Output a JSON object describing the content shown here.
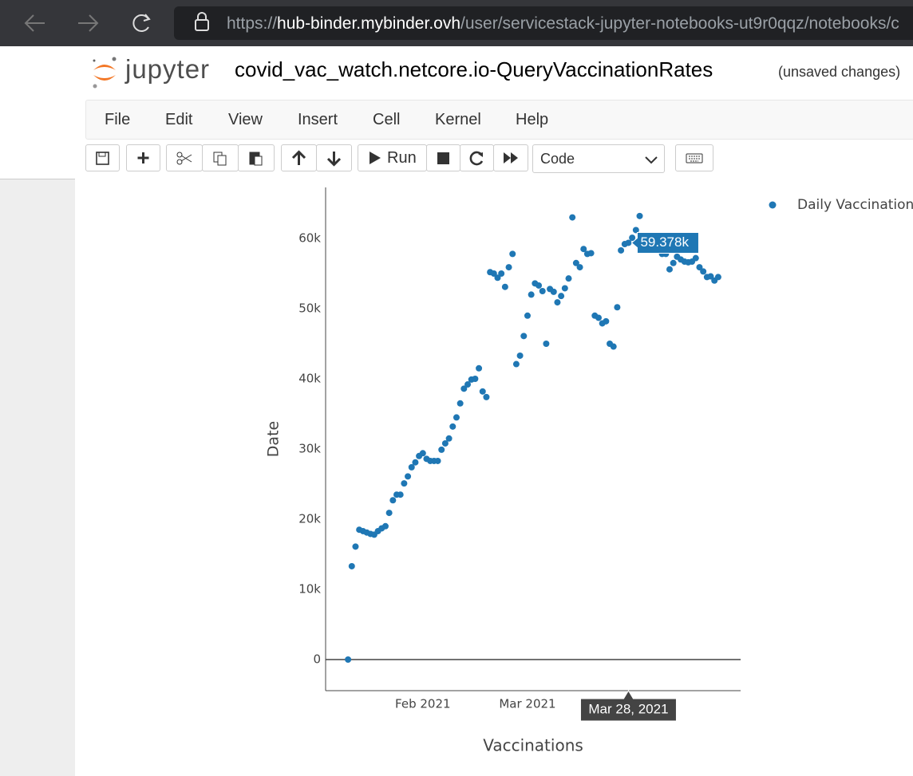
{
  "browser": {
    "url_scheme": "https://",
    "url_host": "hub-binder.mybinder.ovh",
    "url_path": "/user/servicestack-jupyter-notebooks-ut9r0qqz/notebooks/c"
  },
  "header": {
    "logo_text": "jupyter",
    "notebook_name": "covid_vac_watch.netcore.io-QueryVaccinationRates",
    "status": "(unsaved changes)"
  },
  "menu": [
    "File",
    "Edit",
    "View",
    "Insert",
    "Cell",
    "Kernel",
    "Help"
  ],
  "toolbar": {
    "run_label": "Run",
    "cell_type": "Code"
  },
  "chart_data": {
    "type": "scatter",
    "xlabel": "Vaccinations",
    "ylabel": "Date",
    "xlim": [
      "2021-01-06",
      "2021-04-27"
    ],
    "xticks": [
      {
        "value": "2021-02-01",
        "label": "Feb 2021"
      },
      {
        "value": "2021-03-01",
        "label": "Mar 2021"
      }
    ],
    "ylim": [
      -4432,
      67273
    ],
    "yticks": [
      0,
      {
        "value": 10000,
        "label": "10k"
      },
      {
        "value": 20000,
        "label": "20k"
      },
      {
        "value": 30000,
        "label": "30k"
      },
      {
        "value": 40000,
        "label": "40k"
      },
      {
        "value": 50000,
        "label": "50k"
      },
      {
        "value": 60000,
        "label": "60k"
      }
    ],
    "zeroline": true,
    "grid": false,
    "legend": "top-right",
    "x": [
      "2021-01-12",
      "2021-01-13",
      "2021-01-14",
      "2021-01-15",
      "2021-01-16",
      "2021-01-17",
      "2021-01-18",
      "2021-01-19",
      "2021-01-20",
      "2021-01-21",
      "2021-01-22",
      "2021-01-23",
      "2021-01-24",
      "2021-01-25",
      "2021-01-26",
      "2021-01-27",
      "2021-01-28",
      "2021-01-29",
      "2021-01-30",
      "2021-01-31",
      "2021-02-01",
      "2021-02-02",
      "2021-02-03",
      "2021-02-04",
      "2021-02-05",
      "2021-02-06",
      "2021-02-07",
      "2021-02-08",
      "2021-02-09",
      "2021-02-10",
      "2021-02-11",
      "2021-02-12",
      "2021-02-13",
      "2021-02-14",
      "2021-02-15",
      "2021-02-16",
      "2021-02-17",
      "2021-02-18",
      "2021-02-19",
      "2021-02-20",
      "2021-02-21",
      "2021-02-22",
      "2021-02-23",
      "2021-02-24",
      "2021-02-25",
      "2021-02-26",
      "2021-02-27",
      "2021-02-28",
      "2021-03-01",
      "2021-03-02",
      "2021-03-03",
      "2021-03-04",
      "2021-03-05",
      "2021-03-06",
      "2021-03-07",
      "2021-03-08",
      "2021-03-09",
      "2021-03-10",
      "2021-03-11",
      "2021-03-12",
      "2021-03-13",
      "2021-03-14",
      "2021-03-15",
      "2021-03-16",
      "2021-03-17",
      "2021-03-18",
      "2021-03-19",
      "2021-03-20",
      "2021-03-21",
      "2021-03-22",
      "2021-03-23",
      "2021-03-24",
      "2021-03-25",
      "2021-03-26",
      "2021-03-27",
      "2021-03-28",
      "2021-03-29",
      "2021-03-30",
      "2021-03-31",
      "2021-04-01",
      "2021-04-02",
      "2021-04-03",
      "2021-04-04",
      "2021-04-05",
      "2021-04-06",
      "2021-04-07",
      "2021-04-08",
      "2021-04-09",
      "2021-04-10",
      "2021-04-11",
      "2021-04-12",
      "2021-04-13",
      "2021-04-14",
      "2021-04-15",
      "2021-04-16",
      "2021-04-17",
      "2021-04-18",
      "2021-04-19",
      "2021-04-20",
      "2021-04-21"
    ],
    "series": [
      {
        "name": "Daily Vaccinations",
        "color": "#1f77b4",
        "values": [
          0,
          13300,
          16100,
          18500,
          18300,
          18100,
          17900,
          17800,
          18300,
          18700,
          19000,
          20900,
          22700,
          23500,
          23500,
          25100,
          26100,
          27400,
          28100,
          29000,
          29400,
          28600,
          28300,
          28300,
          28300,
          29900,
          30800,
          31500,
          33200,
          34500,
          36500,
          38600,
          39200,
          39900,
          40000,
          41500,
          38200,
          37400,
          55200,
          55000,
          54400,
          55000,
          53100,
          55900,
          57800,
          42100,
          43300,
          46100,
          49000,
          52000,
          53600,
          53300,
          52500,
          45000,
          52800,
          52400,
          50900,
          51800,
          52900,
          54300,
          63000,
          56500,
          55900,
          58500,
          57800,
          57900,
          49000,
          48700,
          47900,
          48200,
          45000,
          44600,
          50200,
          58300,
          59200,
          59378,
          60100,
          61200,
          63200,
          58500,
          58700,
          59000,
          59300,
          58500,
          57800,
          57800,
          55600,
          56500,
          57400,
          57000,
          56700,
          56600,
          56700,
          57200,
          55900,
          55300,
          54500,
          54600,
          54000,
          54500
        ]
      }
    ],
    "hover": {
      "x": "2021-03-28",
      "x_label": "Mar 28, 2021",
      "value": 59378,
      "label": "59.378k"
    }
  }
}
